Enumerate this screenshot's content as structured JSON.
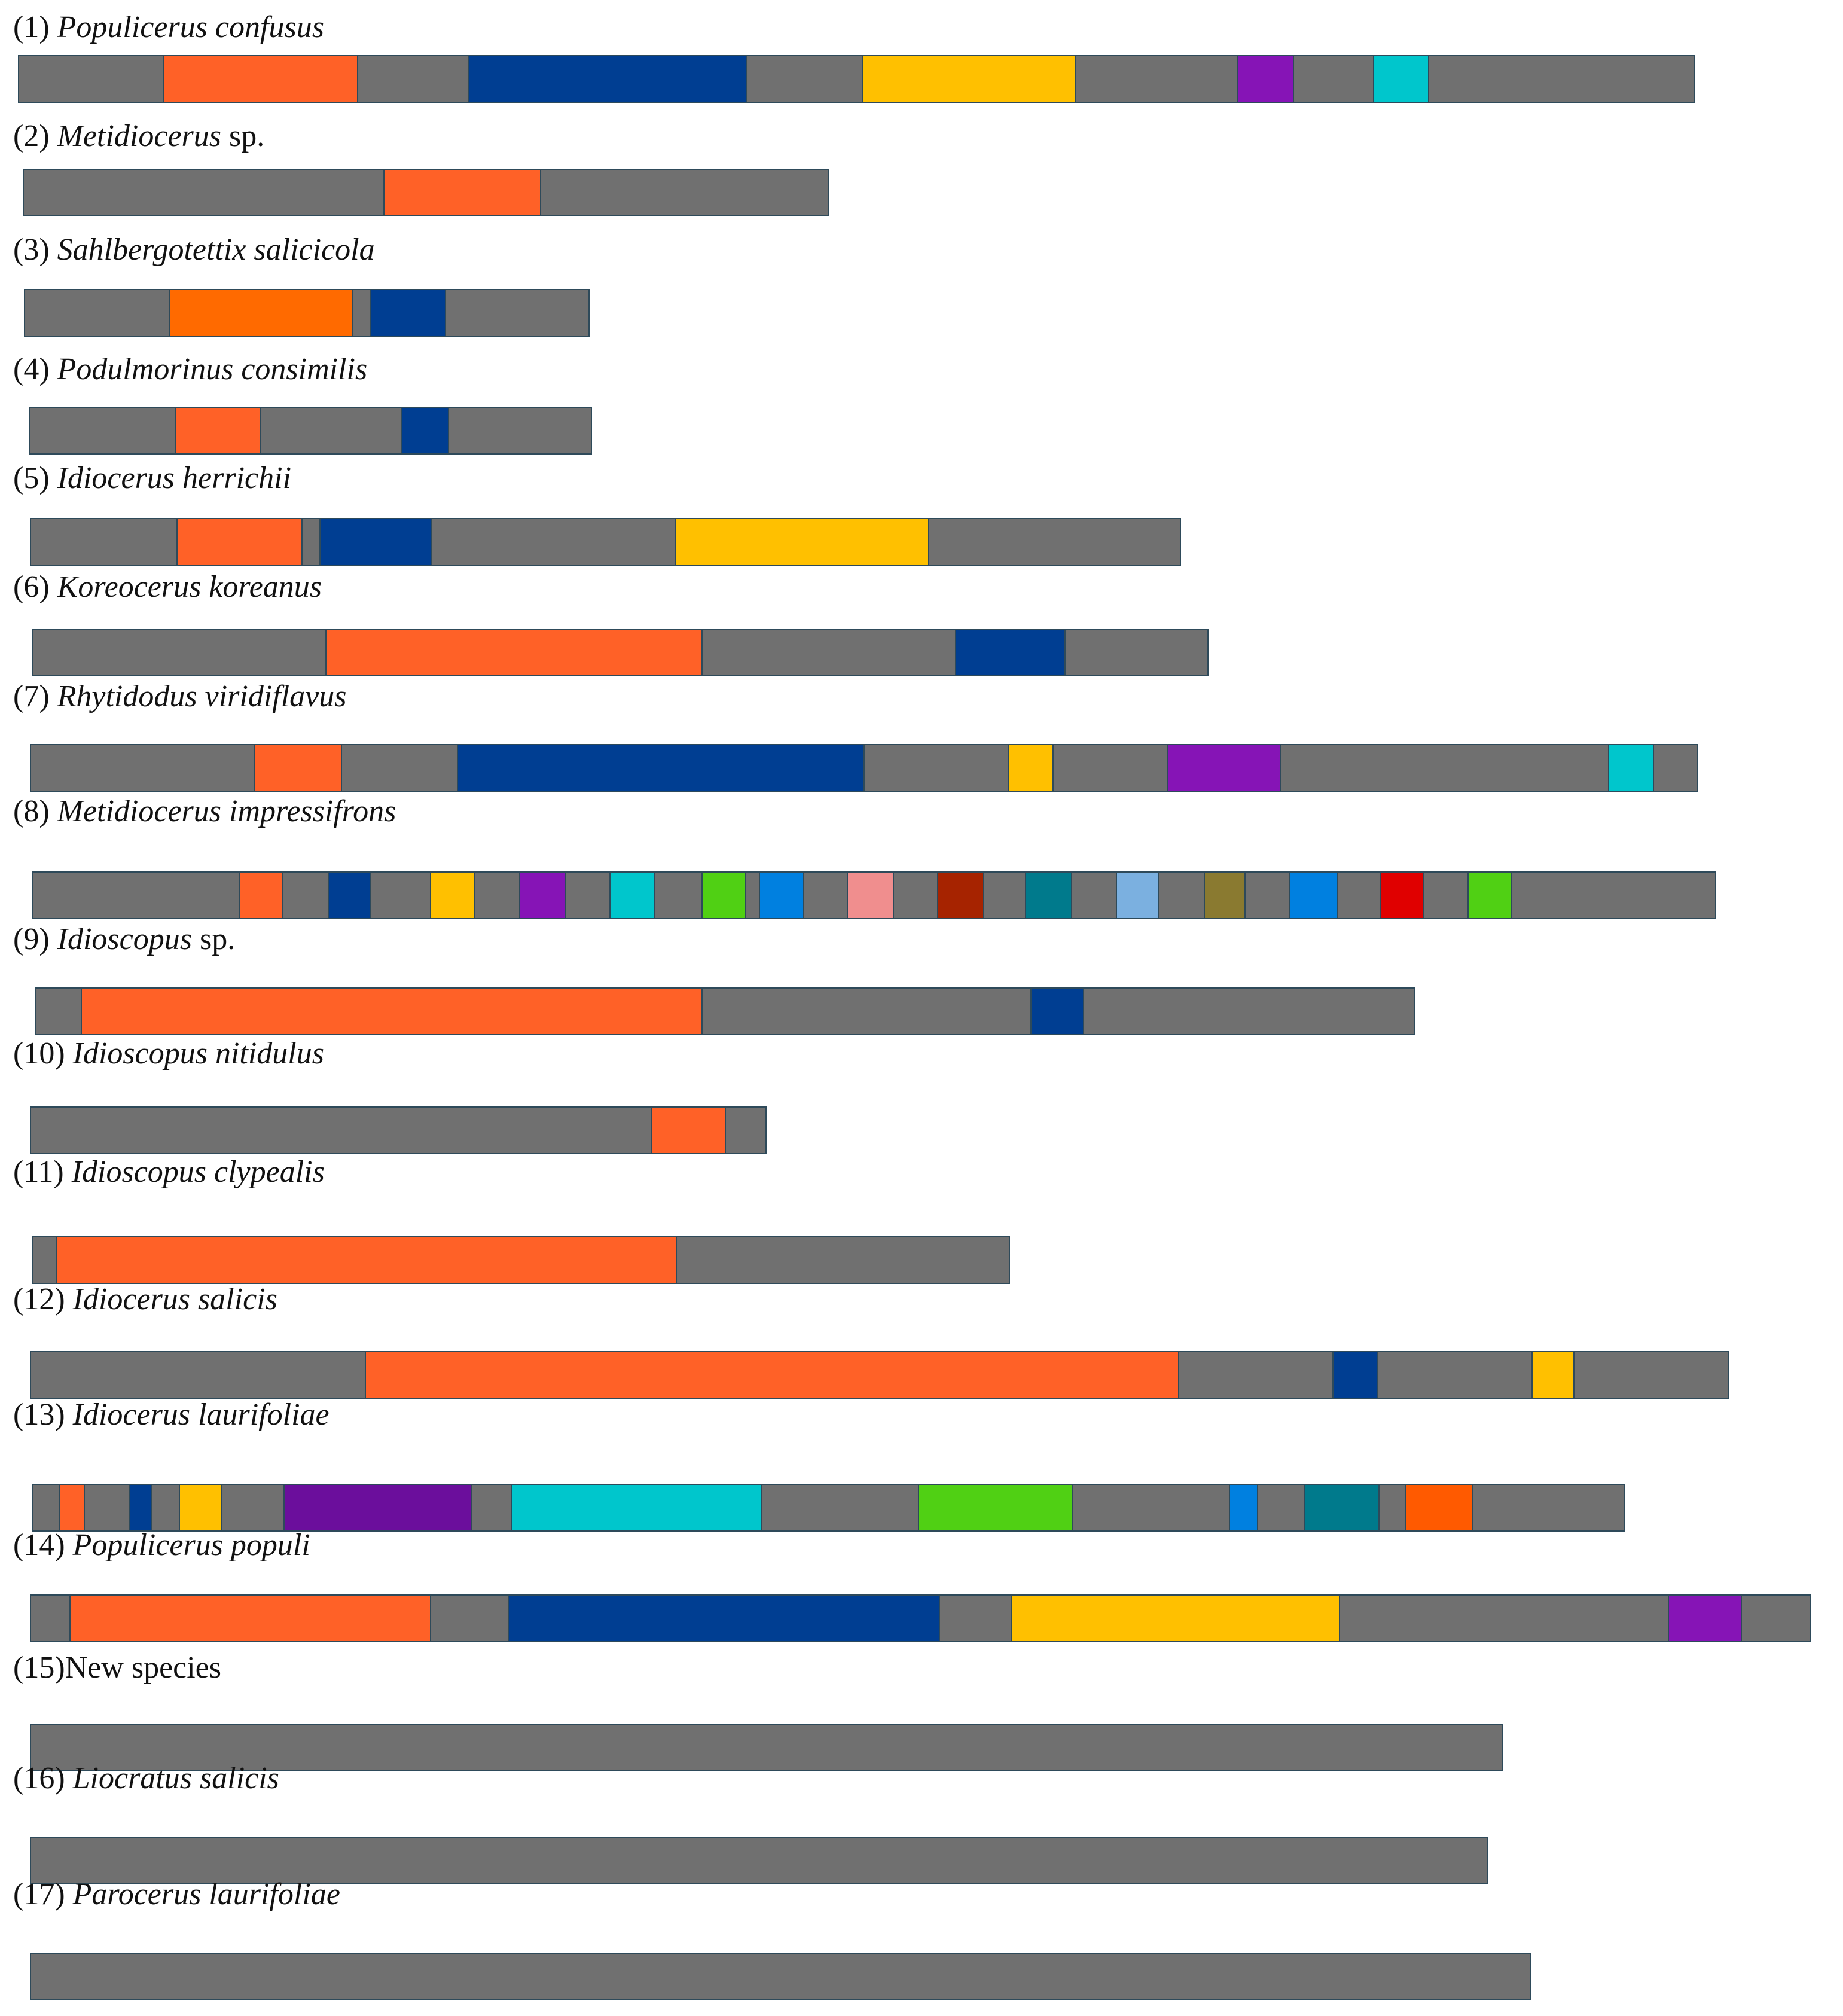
{
  "colors": {
    "gray": "#707070",
    "orange": "#FF6127",
    "orange_deep": "#FF6A00",
    "navy": "#003E92",
    "gold": "#FFC000",
    "purple": "#8614B6",
    "purple_dark": "#6B0E9C",
    "cyan": "#00C6CC",
    "green": "#50D014",
    "azure": "#0080E0",
    "pink": "#F08E8E",
    "rust": "#A62300",
    "teal": "#007A8C",
    "skyblue": "#7BB0E0",
    "olive": "#8A7A30",
    "red": "#E00000",
    "orange_red": "#FF5A00"
  },
  "species": [
    {
      "num": "(1)",
      "name": "Populicerus confusus",
      "suffix": "",
      "length": 1316,
      "segments": [
        {
          "from": 113,
          "to": 266,
          "color": "orange"
        },
        {
          "from": 352,
          "to": 571,
          "color": "navy"
        },
        {
          "from": 661,
          "to": 829,
          "color": "gold"
        },
        {
          "from": 955,
          "to": 1000,
          "color": "purple"
        },
        {
          "from": 1062,
          "to": 1106,
          "color": "cyan"
        }
      ]
    },
    {
      "num": "(2)",
      "name": "Metidiocerus",
      "suffix": " sp.",
      "length": 633,
      "segments": [
        {
          "from": 282,
          "to": 406,
          "color": "orange"
        }
      ]
    },
    {
      "num": "(3)",
      "name": "Sahlbergotettix salicicola",
      "suffix": "",
      "length": 444,
      "segments": [
        {
          "from": 113,
          "to": 257,
          "color": "orange_deep"
        },
        {
          "from": 270,
          "to": 330,
          "color": "navy"
        }
      ]
    },
    {
      "num": "(4)",
      "name": "Podulmorinus consimilis",
      "suffix": "",
      "length": 442,
      "segments": [
        {
          "from": 114,
          "to": 181,
          "color": "orange"
        },
        {
          "from": 291,
          "to": 329,
          "color": "navy"
        }
      ]
    },
    {
      "num": "(5)",
      "name": "Idiocerus herrichii",
      "suffix": "",
      "length": 903,
      "segments": [
        {
          "from": 114,
          "to": 213,
          "color": "orange"
        },
        {
          "from": 226,
          "to": 314,
          "color": "navy"
        },
        {
          "from": 505,
          "to": 705,
          "color": "gold"
        }
      ]
    },
    {
      "num": "(6)",
      "name": "Koreocerus koreanus",
      "suffix": "",
      "length": 923,
      "segments": [
        {
          "from": 229,
          "to": 525,
          "color": "orange"
        },
        {
          "from": 723,
          "to": 810,
          "color": "navy"
        }
      ]
    },
    {
      "num": "(7)",
      "name": "Rhytidodus viridiflavus",
      "suffix": "",
      "length": 1309,
      "segments": [
        {
          "from": 175,
          "to": 244,
          "color": "orange"
        },
        {
          "from": 334,
          "to": 654,
          "color": "navy"
        },
        {
          "from": 766,
          "to": 802,
          "color": "gold"
        },
        {
          "from": 891,
          "to": 981,
          "color": "purple"
        },
        {
          "from": 1237,
          "to": 1273,
          "color": "cyan"
        }
      ]
    },
    {
      "num": "(8)",
      "name": "Metidiocerus impressifrons",
      "suffix": "",
      "length": 1321,
      "segments": [
        {
          "from": 161,
          "to": 196,
          "color": "orange"
        },
        {
          "from": 231,
          "to": 265,
          "color": "navy"
        },
        {
          "from": 311,
          "to": 346,
          "color": "gold"
        },
        {
          "from": 381,
          "to": 418,
          "color": "purple"
        },
        {
          "from": 452,
          "to": 488,
          "color": "cyan"
        },
        {
          "from": 524,
          "to": 559,
          "color": "green"
        },
        {
          "from": 569,
          "to": 604,
          "color": "azure"
        },
        {
          "from": 638,
          "to": 675,
          "color": "pink"
        },
        {
          "from": 709,
          "to": 746,
          "color": "rust"
        },
        {
          "from": 778,
          "to": 815,
          "color": "teal"
        },
        {
          "from": 849,
          "to": 883,
          "color": "skyblue"
        },
        {
          "from": 918,
          "to": 951,
          "color": "olive"
        },
        {
          "from": 985,
          "to": 1023,
          "color": "azure"
        },
        {
          "from": 1056,
          "to": 1091,
          "color": "red"
        },
        {
          "from": 1125,
          "to": 1160,
          "color": "green"
        }
      ]
    },
    {
      "num": "(9)",
      "name": "Idioscopus",
      "suffix": " sp.",
      "length": 1083,
      "segments": [
        {
          "from": 35,
          "to": 523,
          "color": "orange"
        },
        {
          "from": 780,
          "to": 822,
          "color": "navy"
        }
      ]
    },
    {
      "num": "(10)",
      "name": "Idioscopus nitidulus",
      "suffix": "",
      "length": 578,
      "segments": [
        {
          "from": 486,
          "to": 545,
          "color": "orange"
        }
      ]
    },
    {
      "num": "(11)",
      "name": "Idioscopus clypealis",
      "suffix": "",
      "length": 767,
      "segments": [
        {
          "from": 18,
          "to": 505,
          "color": "orange"
        }
      ]
    },
    {
      "num": "(12)",
      "name": "Idiocerus salicis",
      "suffix": "",
      "length": 1333,
      "segments": [
        {
          "from": 262,
          "to": 901,
          "color": "orange"
        },
        {
          "from": 1021,
          "to": 1057,
          "color": "navy"
        },
        {
          "from": 1177,
          "to": 1211,
          "color": "gold"
        }
      ]
    },
    {
      "num": "(13)",
      "name": "Idiocerus laurifoliae",
      "suffix": "",
      "length": 1250,
      "segments": [
        {
          "from": 20,
          "to": 40,
          "color": "orange"
        },
        {
          "from": 75,
          "to": 93,
          "color": "navy"
        },
        {
          "from": 114,
          "to": 148,
          "color": "gold"
        },
        {
          "from": 196,
          "to": 344,
          "color": "purple_dark"
        },
        {
          "from": 375,
          "to": 572,
          "color": "cyan"
        },
        {
          "from": 694,
          "to": 816,
          "color": "green"
        },
        {
          "from": 938,
          "to": 961,
          "color": "azure"
        },
        {
          "from": 997,
          "to": 1056,
          "color": "teal"
        },
        {
          "from": 1076,
          "to": 1130,
          "color": "orange_red"
        }
      ]
    },
    {
      "num": "(14)",
      "name": "Populicerus populi",
      "suffix": "",
      "length": 1397,
      "segments": [
        {
          "from": 30,
          "to": 314,
          "color": "orange"
        },
        {
          "from": 374,
          "to": 713,
          "color": "navy"
        },
        {
          "from": 769,
          "to": 1027,
          "color": "gold"
        },
        {
          "from": 1284,
          "to": 1342,
          "color": "purple"
        }
      ]
    },
    {
      "num": "(15)",
      "name": "",
      "suffix": "New species",
      "length": 1156,
      "segments": []
    },
    {
      "num": "(16)",
      "name": "Liocratus salicis",
      "suffix": "",
      "length": 1144,
      "segments": []
    },
    {
      "num": "(17)",
      "name": "Parocerus laurifoliae",
      "suffix": "",
      "length": 1178,
      "segments": []
    }
  ]
}
